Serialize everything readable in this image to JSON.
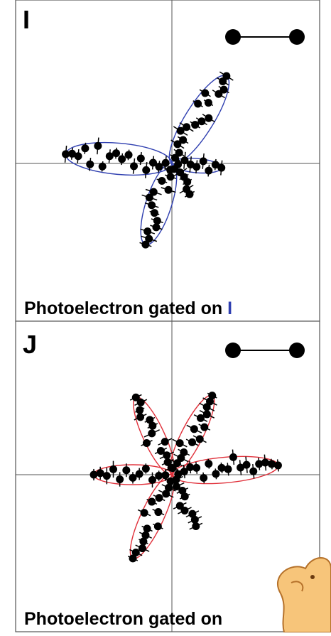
{
  "panels": [
    {
      "label": "I",
      "caption": "Photoelectron gated on",
      "caption_marker": "I"
    },
    {
      "label": "J",
      "caption": "Photoelectron gated on"
    }
  ]
}
